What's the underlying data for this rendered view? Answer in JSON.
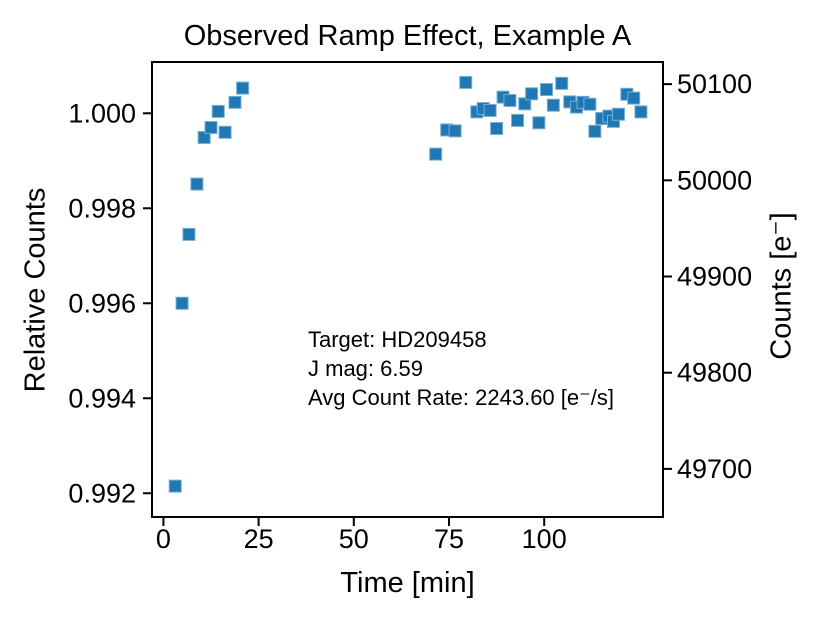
{
  "chart_data": {
    "type": "scatter",
    "title": "Observed Ramp Effect, Example A",
    "xlabel": "Time [min]",
    "ylabel_left": "Relative Counts",
    "ylabel_right": "Counts [e⁻]",
    "marker": "square",
    "marker_color": "#1f77b4",
    "marker_edge_color": "#77aed3",
    "axis_color": "#000000",
    "grid": false,
    "legend": false,
    "xlim": [
      -3.0,
      131.2
    ],
    "ylim_left": [
      0.9915,
      1.00108
    ],
    "ylim_right": [
      49650,
      50123
    ],
    "xticks": [
      {
        "v": 0,
        "label": "0"
      },
      {
        "v": 25,
        "label": "25"
      },
      {
        "v": 50,
        "label": "50"
      },
      {
        "v": 75,
        "label": "75"
      },
      {
        "v": 100,
        "label": "100"
      }
    ],
    "yticks_left": [
      {
        "v": 1.0,
        "label": "1.000"
      },
      {
        "v": 0.998,
        "label": "0.998"
      },
      {
        "v": 0.996,
        "label": "0.996"
      },
      {
        "v": 0.994,
        "label": "0.994"
      },
      {
        "v": 0.992,
        "label": "0.992"
      }
    ],
    "yticks_right": [
      {
        "v": 50100,
        "label": "50100"
      },
      {
        "v": 50000,
        "label": "50000"
      },
      {
        "v": 49900,
        "label": "49900"
      },
      {
        "v": 49800,
        "label": "49800"
      },
      {
        "v": 49700,
        "label": "49700"
      }
    ],
    "annotations": [
      "Target: HD209458",
      "J mag: 6.59",
      "Avg Count Rate: 2243.60 [e⁻/s]"
    ],
    "points": [
      [
        3.1,
        0.99215
      ],
      [
        4.9,
        0.996
      ],
      [
        6.7,
        0.99745
      ],
      [
        8.8,
        0.99851
      ],
      [
        10.7,
        0.99949
      ],
      [
        12.5,
        0.9997
      ],
      [
        14.4,
        1.00004
      ],
      [
        16.2,
        0.9996
      ],
      [
        18.8,
        1.00023
      ],
      [
        20.8,
        1.00053
      ],
      [
        71.5,
        0.99914
      ],
      [
        74.4,
        0.99965
      ],
      [
        76.6,
        0.99963
      ],
      [
        79.4,
        1.00065
      ],
      [
        82.3,
        1.00003
      ],
      [
        84.0,
        1.0001
      ],
      [
        85.8,
        1.00006
      ],
      [
        87.5,
        0.99968
      ],
      [
        89.2,
        1.00034
      ],
      [
        91.0,
        1.00027
      ],
      [
        93.0,
        0.99985
      ],
      [
        94.9,
        1.0002
      ],
      [
        96.7,
        1.00041
      ],
      [
        98.6,
        0.9998
      ],
      [
        100.6,
        1.0005
      ],
      [
        102.4,
        1.00017
      ],
      [
        104.6,
        1.00063
      ],
      [
        106.7,
        1.00024
      ],
      [
        108.5,
        1.00013
      ],
      [
        110.2,
        1.00023
      ],
      [
        112.0,
        1.00019
      ],
      [
        113.3,
        0.99962
      ],
      [
        115.1,
        0.99989
      ],
      [
        117.0,
        0.99994
      ],
      [
        118.2,
        0.99983
      ],
      [
        119.5,
        0.99998
      ],
      [
        121.7,
        1.0004
      ],
      [
        123.5,
        1.00032
      ],
      [
        125.4,
        1.00003
      ]
    ]
  }
}
